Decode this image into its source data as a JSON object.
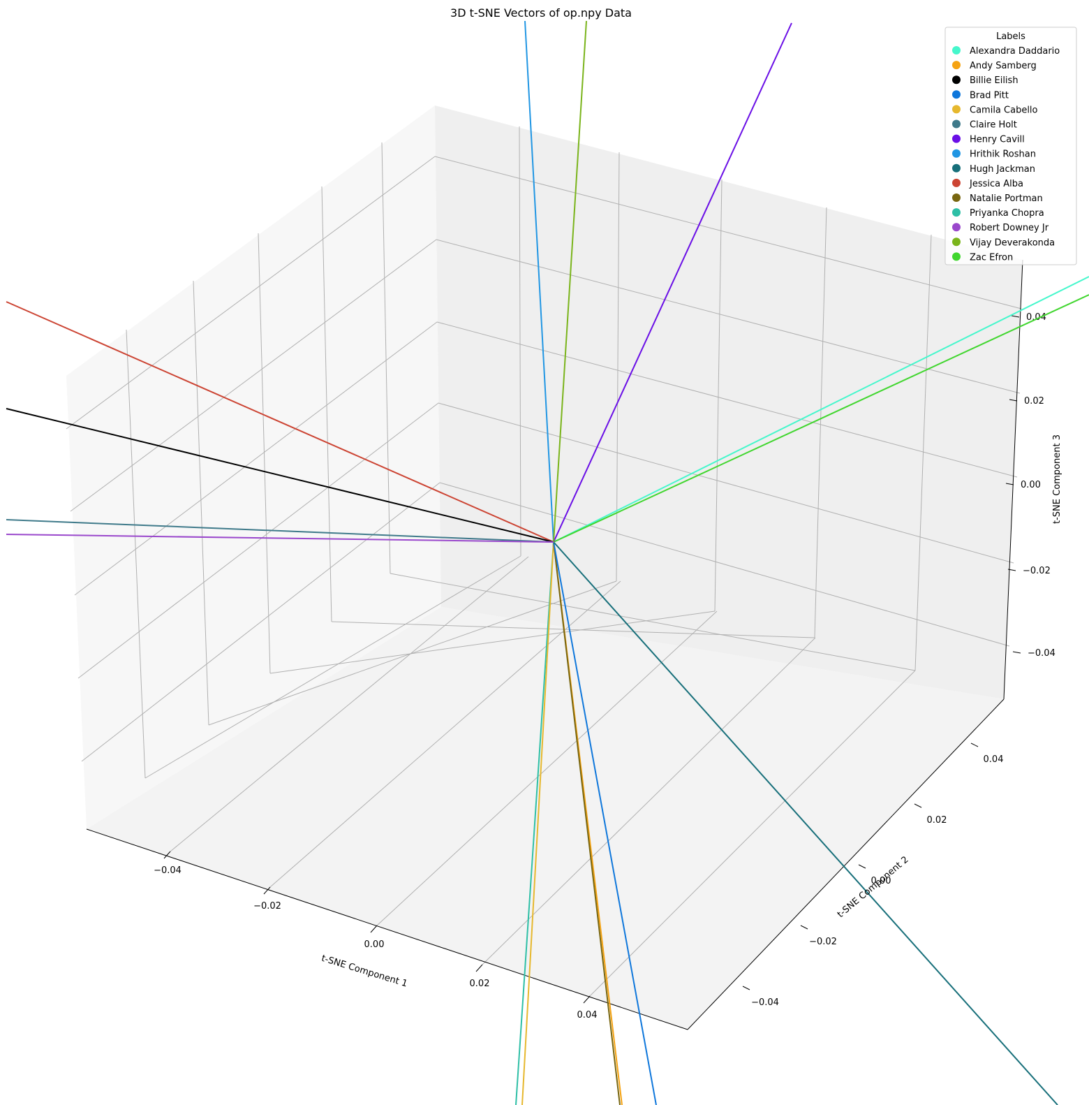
{
  "chart_data": {
    "type": "line",
    "subtype": "3d-vectors-from-origin",
    "title": "3D t-SNE Vectors of op.npy Data",
    "xlabel": "t-SNE Component 1",
    "ylabel": "t-SNE Component 2",
    "zlabel": "t-SNE Component 3",
    "xticks": [
      "−0.04",
      "−0.02",
      "0.00",
      "0.02",
      "0.04"
    ],
    "yticks": [
      "−0.04",
      "−0.02",
      "0.00",
      "0.02",
      "0.04"
    ],
    "zticks": [
      "−0.04",
      "−0.02",
      "0.00",
      "0.02",
      "0.04"
    ],
    "grid": true,
    "legend_title": "Labels",
    "legend_position": "top-right",
    "series": [
      {
        "name": "Alexandra Daddario",
        "color": "#45f7cc"
      },
      {
        "name": "Andy Samberg",
        "color": "#f5a312"
      },
      {
        "name": "Billie Eilish",
        "color": "#000000"
      },
      {
        "name": "Brad Pitt",
        "color": "#0f77db"
      },
      {
        "name": "Camila Cabello",
        "color": "#e6b82e"
      },
      {
        "name": "Claire Holt",
        "color": "#3f7a8a"
      },
      {
        "name": "Henry Cavill",
        "color": "#6a0fe6"
      },
      {
        "name": "Hrithik Roshan",
        "color": "#2196e3"
      },
      {
        "name": "Hugh Jackman",
        "color": "#176f7a"
      },
      {
        "name": "Jessica Alba",
        "color": "#cc4433"
      },
      {
        "name": "Natalie Portman",
        "color": "#786610"
      },
      {
        "name": "Priyanka Chopra",
        "color": "#2ebfa6"
      },
      {
        "name": "Robert Downey Jr",
        "color": "#9a48cc"
      },
      {
        "name": "Vijay Deverakonda",
        "color": "#7ab41b"
      },
      {
        "name": "Zac Efron",
        "color": "#41d62f"
      }
    ]
  }
}
